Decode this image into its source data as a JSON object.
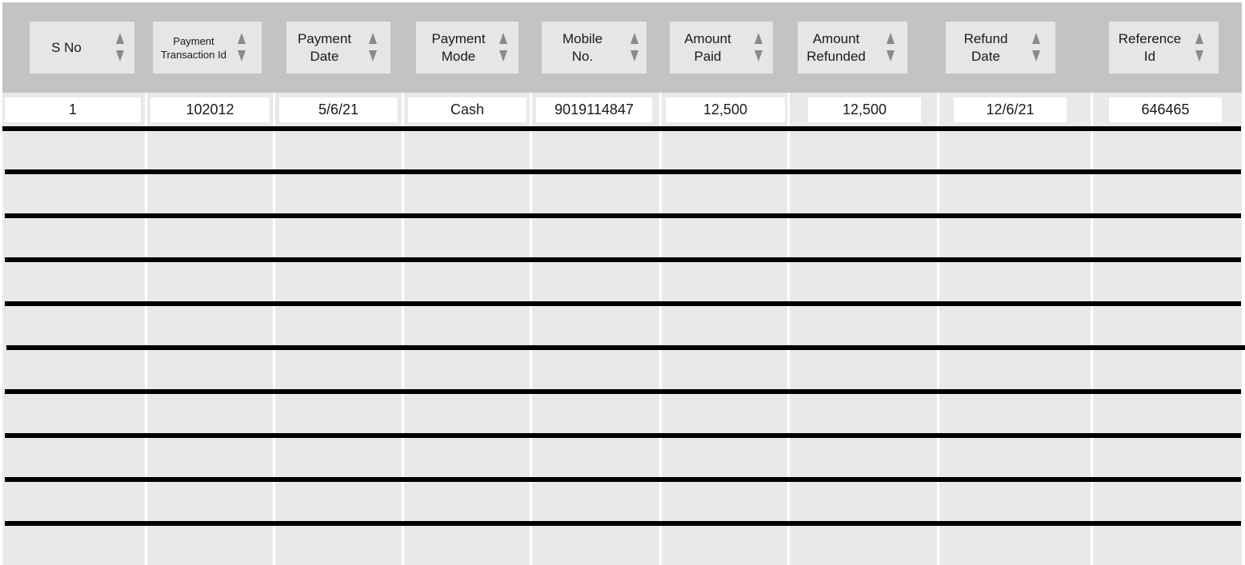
{
  "table": {
    "columns": [
      {
        "lines": [
          "S No"
        ]
      },
      {
        "lines": [
          "Payment",
          "Transaction Id"
        ]
      },
      {
        "lines": [
          "Payment",
          "Date"
        ]
      },
      {
        "lines": [
          "Payment",
          "Mode"
        ]
      },
      {
        "lines": [
          "Mobile",
          "No."
        ]
      },
      {
        "lines": [
          "Amount",
          "Paid"
        ]
      },
      {
        "lines": [
          "Amount",
          "Refunded"
        ]
      },
      {
        "lines": [
          "Refund",
          "Date"
        ]
      },
      {
        "lines": [
          "Reference",
          "Id"
        ]
      }
    ],
    "rows": [
      [
        "1",
        "102012",
        "5/6/21",
        "Cash",
        "9019114847",
        "12,500",
        "12,500",
        "12/6/21",
        "646465"
      ]
    ],
    "empty_row_count": 10
  },
  "icons": {
    "sort": "sort-up-down-icon"
  },
  "colors": {
    "header_background": "#c3c3c3",
    "header_cell": "#e6e6e6",
    "body_background": "#e9e9e9",
    "row_divider": "#000000",
    "sort_arrow": "#8a8a8a"
  }
}
